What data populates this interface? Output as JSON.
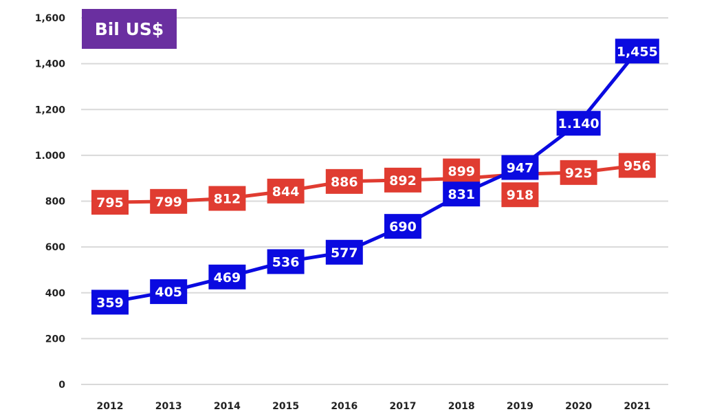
{
  "chart_data": {
    "type": "line",
    "title": "Bil US$",
    "categories": [
      "2012",
      "2013",
      "2014",
      "2015",
      "2016",
      "2017",
      "2018",
      "2019",
      "2020",
      "2021"
    ],
    "ylim": [
      0,
      1600
    ],
    "yticks": [
      0,
      200,
      400,
      600,
      800,
      1000,
      1200,
      1400,
      1600
    ],
    "ytick_labels": [
      "0",
      "200",
      "400",
      "600",
      "800",
      "1.000",
      "1,200",
      "1,400",
      "1,600"
    ],
    "grid": true,
    "legend": "none",
    "series": [
      {
        "color": "#e03c31",
        "values": [
          795,
          799,
          812,
          844,
          886,
          892,
          899,
          918,
          925,
          956
        ],
        "labels": [
          "795",
          "799",
          "812",
          "844",
          "886",
          "892",
          "899",
          "918",
          "925",
          "956"
        ]
      },
      {
        "color": "#0a0ae0",
        "values": [
          359,
          405,
          469,
          536,
          577,
          690,
          831,
          947,
          1140,
          1455
        ],
        "labels": [
          "359",
          "405",
          "469",
          "536",
          "577",
          "690",
          "831",
          "947",
          "1.140",
          "1,455"
        ]
      }
    ]
  }
}
